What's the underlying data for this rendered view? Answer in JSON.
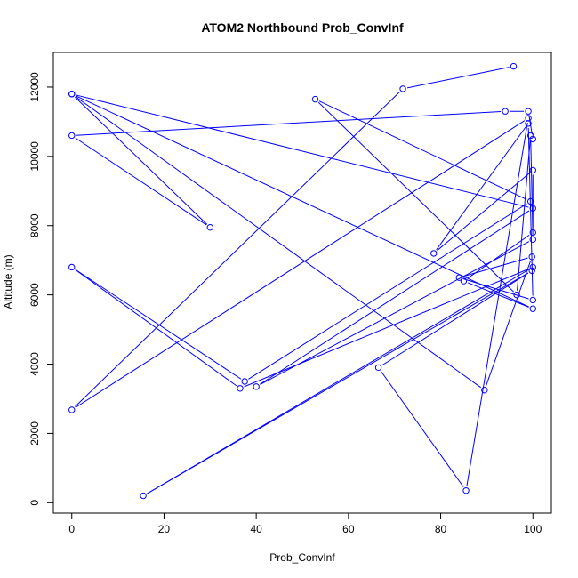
{
  "chart_data": {
    "type": "line",
    "title": "ATOM2 Northbound Prob_ConvInf",
    "xlabel": "Prob_ConvInf",
    "ylabel": "Altitude (m)",
    "xlim": [
      -4,
      104
    ],
    "ylim": [
      -300,
      13000
    ],
    "xticks": [
      0,
      20,
      40,
      60,
      80,
      100
    ],
    "yticks": [
      0,
      2000,
      4000,
      6000,
      8000,
      10000,
      12000
    ],
    "grid": false,
    "markers": "open-circle",
    "series": [
      {
        "color": "#0000ff",
        "points": [
          {
            "x": 95.8,
            "y": 12600
          },
          {
            "x": 71.8,
            "y": 11950
          },
          {
            "x": 0.0,
            "y": 2680
          },
          {
            "x": 99.0,
            "y": 11100
          },
          {
            "x": 85.5,
            "y": 350
          },
          {
            "x": 66.5,
            "y": 3900
          },
          {
            "x": 99.8,
            "y": 6700
          },
          {
            "x": 15.5,
            "y": 200
          },
          {
            "x": 100.0,
            "y": 6800
          },
          {
            "x": 36.5,
            "y": 3300
          },
          {
            "x": 0.0,
            "y": 6800
          },
          {
            "x": 37.5,
            "y": 3500
          },
          {
            "x": 99.5,
            "y": 8700
          },
          {
            "x": 52.8,
            "y": 11650
          },
          {
            "x": 96.5,
            "y": 6000
          },
          {
            "x": 99.5,
            "y": 10600
          },
          {
            "x": 100.0,
            "y": 7600
          },
          {
            "x": 40.0,
            "y": 3350
          },
          {
            "x": 100.0,
            "y": 8500
          },
          {
            "x": 0.0,
            "y": 11800
          },
          {
            "x": 89.5,
            "y": 3250
          },
          {
            "x": 99.8,
            "y": 7100
          },
          {
            "x": 84.0,
            "y": 6500
          },
          {
            "x": 100.0,
            "y": 5850
          },
          {
            "x": 99.0,
            "y": 10950
          },
          {
            "x": 78.5,
            "y": 7200
          },
          {
            "x": 100.0,
            "y": 9600
          },
          {
            "x": 100.0,
            "y": 7800
          },
          {
            "x": 85.0,
            "y": 6400
          },
          {
            "x": 100.0,
            "y": 5600
          },
          {
            "x": 0.0,
            "y": 11800
          },
          {
            "x": 30.0,
            "y": 7950
          },
          {
            "x": 0.0,
            "y": 10600
          },
          {
            "x": 94.0,
            "y": 11300
          },
          {
            "x": 99.0,
            "y": 11300
          },
          {
            "x": 100.0,
            "y": 10500
          }
        ]
      }
    ]
  }
}
